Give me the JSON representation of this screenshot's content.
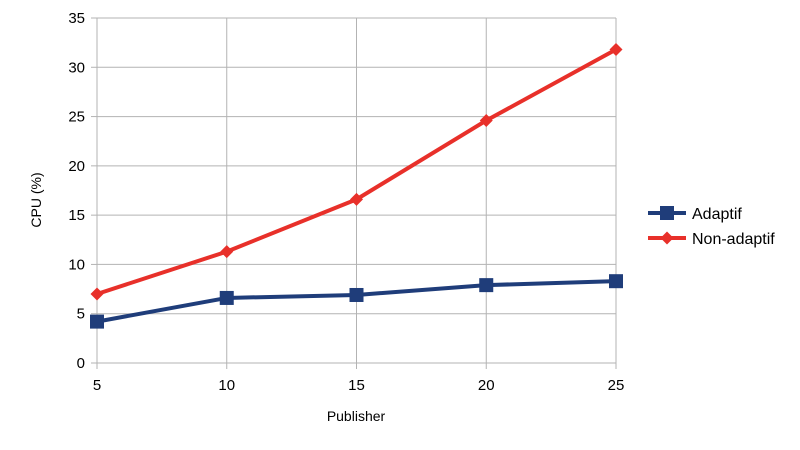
{
  "chart_data": {
    "type": "line",
    "title": "",
    "xlabel": "Publisher",
    "ylabel": "CPU (%)",
    "x": [
      5,
      10,
      15,
      20,
      25
    ],
    "xlim": [
      5,
      25
    ],
    "ylim": [
      0,
      35
    ],
    "yticks": [
      0,
      5,
      10,
      15,
      20,
      25,
      30,
      35
    ],
    "grid": true,
    "legend_position": "right",
    "series": [
      {
        "name": "Adaptif",
        "marker": "square",
        "color": "#1f3d7a",
        "values": [
          4.2,
          6.6,
          6.9,
          7.9,
          8.3
        ]
      },
      {
        "name": "Non-adaptif",
        "marker": "diamond",
        "color": "#e8302a",
        "values": [
          7.0,
          11.3,
          16.6,
          24.6,
          31.8
        ]
      }
    ]
  }
}
